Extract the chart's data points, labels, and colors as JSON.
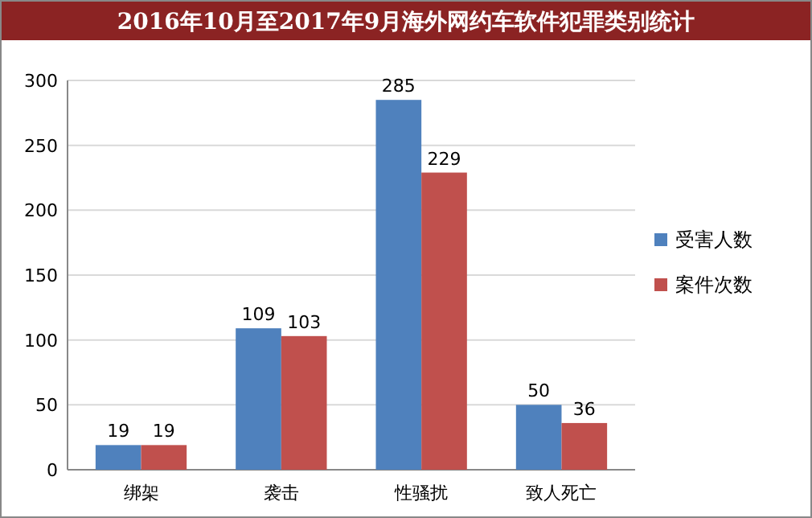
{
  "chart_data": {
    "type": "bar",
    "title": "2016年10月至2017年9月海外网约车软件犯罪类别统计",
    "categories": [
      "绑架",
      "袭击",
      "性骚扰",
      "致人死亡"
    ],
    "series": [
      {
        "name": "受害人数",
        "color": "#4f81bd",
        "values": [
          19,
          109,
          285,
          50
        ]
      },
      {
        "name": "案件次数",
        "color": "#c0504d",
        "values": [
          19,
          103,
          229,
          36
        ]
      }
    ],
    "ylim": [
      0,
      300
    ],
    "yticks": [
      0,
      50,
      100,
      150,
      200,
      250,
      300
    ],
    "grid": "y",
    "legend": "right",
    "data_labels": true
  }
}
